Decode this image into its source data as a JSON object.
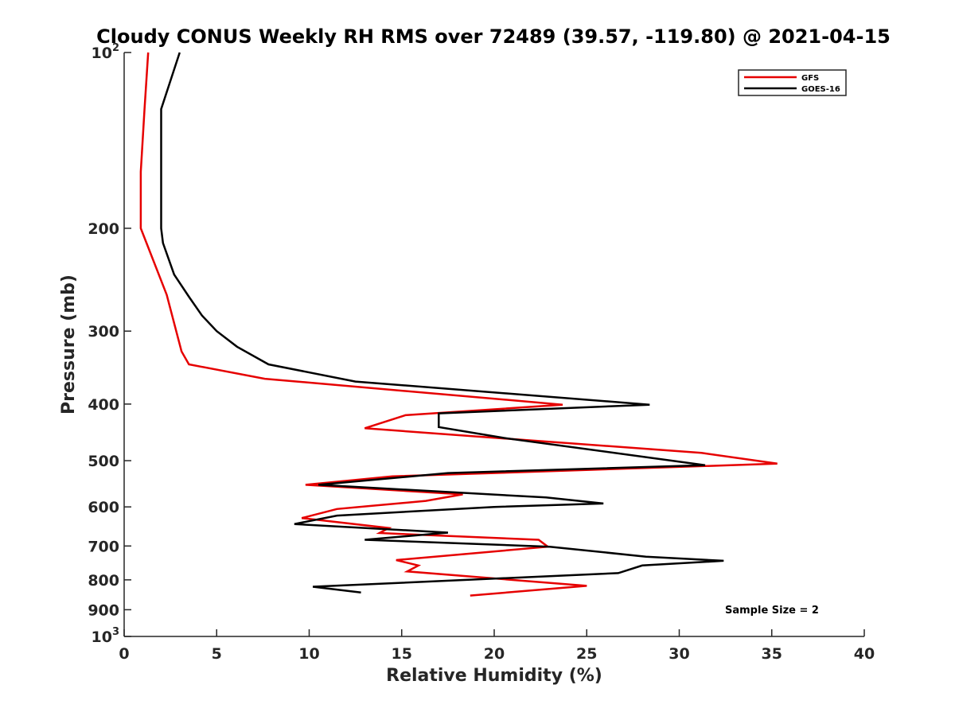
{
  "chart_data": {
    "type": "line",
    "title": "Cloudy CONUS Weekly RH RMS over 72489 (39.57, -119.80) @ 2021-04-15",
    "xlabel": "Relative Humidity (%)",
    "ylabel": "Pressure (mb)",
    "xlim": [
      0,
      40
    ],
    "ylim": [
      100,
      1000
    ],
    "y_scale": "log",
    "y_reversed": true,
    "x_ticks": [
      0,
      5,
      10,
      15,
      20,
      25,
      30,
      35,
      40
    ],
    "x_tick_labels": [
      "0",
      "5",
      "10",
      "15",
      "20",
      "25",
      "30",
      "35",
      "40"
    ],
    "y_ticks": [
      100,
      200,
      300,
      400,
      500,
      600,
      700,
      800,
      900,
      1000
    ],
    "y_tick_labels": [
      {
        "base": "10",
        "sup": "2"
      },
      {
        "base": "200",
        "sup": ""
      },
      {
        "base": "300",
        "sup": ""
      },
      {
        "base": "400",
        "sup": ""
      },
      {
        "base": "500",
        "sup": ""
      },
      {
        "base": "600",
        "sup": ""
      },
      {
        "base": "700",
        "sup": ""
      },
      {
        "base": "800",
        "sup": ""
      },
      {
        "base": "900",
        "sup": ""
      },
      {
        "base": "10",
        "sup": "3"
      }
    ],
    "grid": false,
    "legend_position": "top-right",
    "annotation": "Sample Size = 2",
    "series": [
      {
        "name": "GFS",
        "color": "#e60000",
        "points": [
          [
            1.3,
            100
          ],
          [
            1.1,
            125
          ],
          [
            0.9,
            160
          ],
          [
            0.9,
            200
          ],
          [
            2.3,
            260
          ],
          [
            3.1,
            325
          ],
          [
            3.5,
            342
          ],
          [
            7.6,
            362
          ],
          [
            23.7,
            401
          ],
          [
            15.2,
            418
          ],
          [
            13.0,
            440
          ],
          [
            31.2,
            485
          ],
          [
            35.3,
            506
          ],
          [
            14.5,
            532
          ],
          [
            9.8,
            550
          ],
          [
            18.3,
            571
          ],
          [
            16.3,
            586
          ],
          [
            11.5,
            605
          ],
          [
            9.6,
            627
          ],
          [
            14.3,
            652
          ],
          [
            13.8,
            665
          ],
          [
            22.4,
            683
          ],
          [
            22.9,
            702
          ],
          [
            14.7,
            740
          ],
          [
            15.9,
            756
          ],
          [
            15.3,
            774
          ],
          [
            25.0,
            819
          ],
          [
            18.7,
            851
          ]
        ]
      },
      {
        "name": "GOES-16",
        "color": "#000000",
        "points": [
          [
            3.0,
            100
          ],
          [
            2.0,
            125
          ],
          [
            2.0,
            200
          ],
          [
            2.1,
            212
          ],
          [
            2.7,
            240
          ],
          [
            3.5,
            262
          ],
          [
            4.2,
            282
          ],
          [
            5.0,
            300
          ],
          [
            6.1,
            319
          ],
          [
            7.8,
            342
          ],
          [
            12.5,
            366
          ],
          [
            28.4,
            401
          ],
          [
            17.0,
            415
          ],
          [
            17.0,
            438
          ],
          [
            20.5,
            457
          ],
          [
            31.4,
            509
          ],
          [
            17.5,
            525
          ],
          [
            10.5,
            550
          ],
          [
            22.8,
            578
          ],
          [
            25.9,
            592
          ],
          [
            20.0,
            600
          ],
          [
            11.5,
            621
          ],
          [
            9.2,
            642
          ],
          [
            17.5,
            664
          ],
          [
            13.0,
            683
          ],
          [
            23.0,
            702
          ],
          [
            28.2,
            730
          ],
          [
            32.4,
            742
          ],
          [
            28.0,
            756
          ],
          [
            26.7,
            779
          ],
          [
            10.2,
            822
          ],
          [
            12.8,
            841
          ]
        ]
      }
    ]
  }
}
